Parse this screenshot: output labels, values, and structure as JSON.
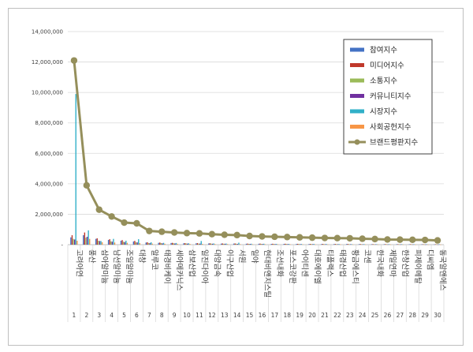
{
  "chart_data": {
    "type": "bar",
    "title": "",
    "xlabel": "",
    "ylabel": "",
    "ylim": [
      0,
      14000000
    ],
    "yticks": [
      0,
      2000000,
      4000000,
      6000000,
      8000000,
      10000000,
      12000000,
      14000000
    ],
    "ytick_labels": [
      "-",
      "2,000,000",
      "4,000,000",
      "6,000,000",
      "8,000,000",
      "10,000,000",
      "12,000,000",
      "14,000,000"
    ],
    "grid": "horizontal",
    "legend_position": "right",
    "categories": [
      "고려아연",
      "풍산",
      "삼아알미늄",
      "남선알미늄",
      "조일알미늄",
      "대창",
      "알루코",
      "태경비케이",
      "세아메카닉스",
      "삼보산업",
      "일진다이아",
      "대양금속",
      "이구산업",
      "서원",
      "일야",
      "현대비앤지스틸",
      "조선내화",
      "포스코강판",
      "아이티센",
      "대호에이엘",
      "티플랙스",
      "태경산업",
      "황금에스티",
      "코센",
      "한국내화",
      "제일연마",
      "한창산업",
      "피제이메탈",
      "디씨엠",
      "동국알앤에스"
    ],
    "category_numbers": [
      "1",
      "2",
      "3",
      "4",
      "5",
      "6",
      "7",
      "8",
      "9",
      "10",
      "11",
      "12",
      "13",
      "14",
      "15",
      "16",
      "17",
      "18",
      "19",
      "20",
      "21",
      "22",
      "23",
      "24",
      "25",
      "26",
      "27",
      "28",
      "29",
      "30"
    ],
    "series": [
      {
        "name": "참여지수",
        "type": "bar",
        "color": "#4472c4",
        "values": [
          480000,
          620000,
          380000,
          310000,
          260000,
          210000,
          140000,
          120000,
          110000,
          90000,
          90000,
          80000,
          70000,
          70000,
          60000,
          60000,
          50000,
          50000,
          50000,
          40000,
          40000,
          40000,
          40000,
          35000,
          30000,
          30000,
          30000,
          25000,
          25000,
          20000
        ]
      },
      {
        "name": "미디어지수",
        "type": "bar",
        "color": "#c0392b",
        "values": [
          620000,
          800000,
          420000,
          360000,
          300000,
          250000,
          160000,
          140000,
          120000,
          100000,
          100000,
          90000,
          80000,
          80000,
          70000,
          70000,
          60000,
          60000,
          55000,
          50000,
          50000,
          45000,
          45000,
          40000,
          35000,
          35000,
          30000,
          30000,
          25000,
          25000
        ]
      },
      {
        "name": "소통지수",
        "type": "bar",
        "color": "#9bbb59",
        "values": [
          380000,
          460000,
          260000,
          220000,
          190000,
          160000,
          110000,
          100000,
          90000,
          80000,
          70000,
          70000,
          60000,
          60000,
          50000,
          50000,
          45000,
          45000,
          40000,
          40000,
          35000,
          35000,
          30000,
          30000,
          25000,
          25000,
          25000,
          20000,
          20000,
          20000
        ]
      },
      {
        "name": "커뮤니티지수",
        "type": "bar",
        "color": "#7030a0",
        "values": [
          340000,
          520000,
          240000,
          200000,
          170000,
          150000,
          100000,
          90000,
          80000,
          70000,
          70000,
          60000,
          60000,
          50000,
          50000,
          45000,
          40000,
          40000,
          35000,
          35000,
          30000,
          30000,
          30000,
          25000,
          25000,
          20000,
          20000,
          20000,
          15000,
          15000
        ]
      },
      {
        "name": "시장지수",
        "type": "bar",
        "color": "#31b0c8",
        "values": [
          9900000,
          940000,
          240000,
          380000,
          260000,
          360000,
          160000,
          120000,
          110000,
          90000,
          240000,
          80000,
          70000,
          130000,
          60000,
          60000,
          50000,
          50000,
          45000,
          45000,
          40000,
          40000,
          35000,
          35000,
          30000,
          30000,
          30000,
          25000,
          25000,
          25000
        ]
      },
      {
        "name": "사회공헌지수",
        "type": "bar",
        "color": "#f79646",
        "values": [
          260000,
          380000,
          160000,
          140000,
          120000,
          100000,
          70000,
          60000,
          60000,
          50000,
          50000,
          40000,
          40000,
          35000,
          30000,
          30000,
          30000,
          25000,
          25000,
          20000,
          20000,
          20000,
          20000,
          15000,
          15000,
          15000,
          15000,
          10000,
          10000,
          10000
        ]
      },
      {
        "name": "브랜드평판지수",
        "type": "line",
        "color": "#958f5b",
        "values": [
          12100000,
          3900000,
          2300000,
          1850000,
          1450000,
          1400000,
          900000,
          850000,
          800000,
          760000,
          740000,
          690000,
          650000,
          630000,
          570000,
          540000,
          520000,
          500000,
          480000,
          460000,
          440000,
          430000,
          420000,
          390000,
          370000,
          340000,
          330000,
          320000,
          310000,
          280000
        ]
      }
    ]
  }
}
